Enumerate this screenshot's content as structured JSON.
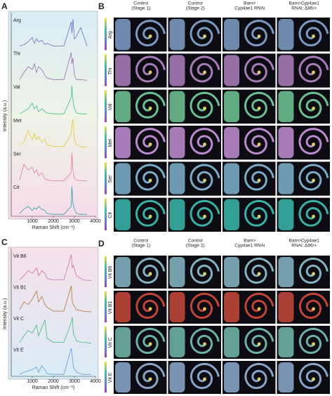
{
  "chart_data": [
    {
      "type": "line",
      "panel": "A",
      "x_label": "Raman Shift (cm⁻¹)",
      "y_label": "Intensity (a.u.)",
      "x": [
        400,
        600,
        800,
        1000,
        1100,
        1200,
        1300,
        1450,
        1600,
        1700,
        2000,
        2500,
        2850,
        2880,
        2930,
        3000,
        3100,
        3300,
        3600
      ],
      "xlim": [
        0,
        4000
      ],
      "xticks": [
        1000,
        2000,
        3000,
        4000
      ],
      "series": [
        {
          "name": "Arg",
          "color": "#6a6fb5",
          "values": [
            0.05,
            0.1,
            0.2,
            0.35,
            0.15,
            0.3,
            0.2,
            0.25,
            0.1,
            0.15,
            0.05,
            0.05,
            0.9,
            0.5,
            1.0,
            0.3,
            0.4,
            0.7,
            0.05
          ]
        },
        {
          "name": "Thr",
          "color": "#9b6bb0",
          "values": [
            0.05,
            0.3,
            0.5,
            0.4,
            0.6,
            0.3,
            0.5,
            0.4,
            0.2,
            0.1,
            0.05,
            0.05,
            1.0,
            0.6,
            0.8,
            0.2,
            0.05,
            0.05,
            0.02
          ]
        },
        {
          "name": "Val",
          "color": "#3dbf8a",
          "values": [
            0.02,
            0.1,
            0.2,
            0.4,
            0.2,
            0.3,
            0.1,
            0.2,
            0.1,
            0.05,
            0.02,
            0.02,
            0.6,
            1.0,
            0.5,
            0.2,
            0.05,
            0.02,
            0.02
          ]
        },
        {
          "name": "Met",
          "color": "#e0c830",
          "values": [
            0.1,
            0.2,
            0.6,
            0.3,
            0.5,
            0.3,
            0.4,
            0.2,
            0.3,
            0.1,
            0.05,
            0.05,
            0.5,
            0.8,
            1.0,
            0.3,
            0.1,
            0.05,
            0.02
          ]
        },
        {
          "name": "Ser",
          "color": "#e07aa0",
          "values": [
            0.05,
            0.6,
            0.4,
            0.5,
            0.3,
            0.4,
            0.2,
            0.3,
            0.1,
            0.05,
            0.02,
            0.02,
            0.3,
            1.0,
            0.4,
            0.1,
            0.05,
            0.02,
            0.02
          ]
        },
        {
          "name": "Cit",
          "color": "#2aa0a8",
          "values": [
            0.05,
            0.2,
            0.3,
            0.15,
            0.25,
            0.2,
            0.3,
            0.2,
            0.15,
            0.05,
            0.02,
            0.02,
            0.3,
            1.0,
            0.4,
            0.2,
            0.05,
            0.02,
            0.02
          ]
        }
      ]
    },
    {
      "type": "line",
      "panel": "C",
      "x_label": "Raman Shift (cm⁻¹)",
      "y_label": "Intensity (a.u.)",
      "x": [
        400,
        600,
        800,
        1000,
        1200,
        1300,
        1450,
        1600,
        1700,
        2000,
        2500,
        2850,
        2900,
        2950,
        3100,
        3400,
        3800
      ],
      "xlim": [
        0,
        4000
      ],
      "xticks": [
        1000,
        2000,
        3000,
        4000
      ],
      "series": [
        {
          "name": "Vit B6",
          "color": "#d56fa0",
          "values": [
            0.05,
            0.2,
            0.4,
            0.3,
            0.5,
            0.2,
            0.4,
            0.3,
            0.1,
            0.05,
            0.05,
            1.0,
            0.5,
            0.6,
            0.2,
            0.05,
            0.02
          ]
        },
        {
          "name": "Vit B1",
          "color": "#b87333",
          "values": [
            0.1,
            0.4,
            0.3,
            0.5,
            0.8,
            0.4,
            0.6,
            0.3,
            0.2,
            0.05,
            0.05,
            1.0,
            0.4,
            0.3,
            0.1,
            0.05,
            0.02
          ]
        },
        {
          "name": "Vit C",
          "color": "#45b87a",
          "values": [
            0.05,
            0.3,
            0.5,
            0.4,
            0.7,
            0.3,
            0.6,
            0.9,
            0.2,
            0.05,
            0.05,
            0.8,
            1.0,
            0.4,
            0.1,
            0.05,
            0.02
          ]
        },
        {
          "name": "Vit E",
          "color": "#5b9bd5",
          "values": [
            0.02,
            0.1,
            0.15,
            0.2,
            0.3,
            0.1,
            0.35,
            0.2,
            0.05,
            0.02,
            0.02,
            1.0,
            0.7,
            0.3,
            0.1,
            0.02,
            0.02
          ]
        }
      ]
    }
  ],
  "image_panels": [
    {
      "panel": "B",
      "columns": [
        [
          "Control",
          "(Stage 1)"
        ],
        [
          "Control",
          "(Stage 2)"
        ],
        [
          "Bam>",
          "Cyp4ae1 RNAi"
        ],
        [
          "Bam>Cyp4ae1",
          "RNAi; Δ86/+"
        ]
      ],
      "rows": [
        "Arg",
        "Thr",
        "Val",
        "Met",
        "Ser",
        "Cit"
      ]
    },
    {
      "panel": "D",
      "columns": [
        [
          "Control",
          "(Stage 1)"
        ],
        [
          "Control",
          "(Stage 2)"
        ],
        [
          "Bam>",
          "Cyp4ae1 RNAi"
        ],
        [
          "Bam>Cyp4ae1",
          "RNAi; Δ86/+"
        ]
      ],
      "rows": [
        "Vit B6",
        "Vit B1",
        "Vit C",
        "Vit E"
      ]
    }
  ]
}
